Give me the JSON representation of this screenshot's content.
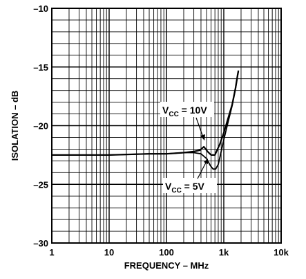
{
  "chart_data": {
    "type": "line",
    "title": "",
    "xlabel": "FREQUENCY – MHz",
    "ylabel": "ISOLATION – dB",
    "x_scale": "log",
    "xlim": [
      1,
      10000
    ],
    "ylim": [
      -30,
      -10
    ],
    "x_tick_labels": [
      {
        "value": 1,
        "label": "1"
      },
      {
        "value": 10,
        "label": "10"
      },
      {
        "value": 100,
        "label": "100"
      },
      {
        "value": 1000,
        "label": "1k"
      },
      {
        "value": 10000,
        "label": "10k"
      }
    ],
    "y_tick_labels": [
      {
        "value": -10,
        "label": "–10"
      },
      {
        "value": -15,
        "label": "–15"
      },
      {
        "value": -20,
        "label": "–20"
      },
      {
        "value": -25,
        "label": "–25"
      },
      {
        "value": -30,
        "label": "–30"
      }
    ],
    "grid": true,
    "series": [
      {
        "name": "VCC = 10V",
        "x": [
          1,
          10,
          50,
          100,
          200,
          300,
          380,
          450,
          520,
          600,
          700,
          850,
          1000,
          1200,
          1400,
          1600,
          1750,
          1800
        ],
        "y": [
          -22.5,
          -22.5,
          -22.4,
          -22.4,
          -22.3,
          -22.2,
          -22.1,
          -21.8,
          -22.2,
          -22.5,
          -22.5,
          -21.6,
          -20.6,
          -19.3,
          -18.2,
          -16.8,
          -15.6,
          -15.3
        ]
      },
      {
        "name": "VCC = 5V",
        "x": [
          1,
          10,
          50,
          100,
          200,
          300,
          400,
          500,
          580,
          650,
          720,
          800,
          900,
          1000,
          1200,
          1400,
          1600,
          1750,
          1800
        ],
        "y": [
          -22.5,
          -22.5,
          -22.4,
          -22.4,
          -22.3,
          -22.3,
          -22.4,
          -22.8,
          -23.4,
          -23.7,
          -23.7,
          -23.3,
          -22.2,
          -21.2,
          -19.6,
          -18.3,
          -16.9,
          -15.7,
          -15.4
        ]
      }
    ],
    "annotations": [
      {
        "id": "ann-10v",
        "series": "VCC = 10V",
        "label": "V",
        "sub": "CC",
        "rest": " = 10V"
      },
      {
        "id": "ann-5v",
        "series": "VCC = 5V",
        "label": "V",
        "sub": "CC",
        "rest": " = 5V"
      }
    ]
  }
}
